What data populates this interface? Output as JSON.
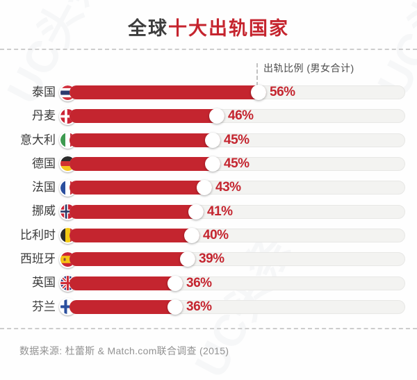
{
  "title": {
    "prefix": "全球",
    "highlight": "十大出轨国家"
  },
  "annotation": {
    "label": "出轨比例 (男女合计)"
  },
  "footer": {
    "source": "数据来源: 杜蕾斯 & Match.com联合调查 (2015)"
  },
  "watermark": {
    "text": "UC头条"
  },
  "colors": {
    "accent_red": "#c4252f",
    "title_dark": "#3d3d3d",
    "track_gray": "#f3f3f1",
    "muted_gray": "#929292"
  },
  "chart_data": {
    "type": "bar",
    "orientation": "horizontal",
    "title": "全球十大出轨国家",
    "value_axis_label": "出轨比例 (男女合计)",
    "unit": "%",
    "categories": [
      "泰国",
      "丹麦",
      "意大利",
      "德国",
      "法国",
      "挪威",
      "比利时",
      "西班牙",
      "英国",
      "芬兰"
    ],
    "values": [
      56,
      46,
      45,
      45,
      43,
      41,
      40,
      39,
      36,
      36
    ],
    "flags": [
      "flag-thailand",
      "flag-denmark",
      "flag-italy",
      "flag-germany",
      "flag-france",
      "flag-norway",
      "flag-belgium",
      "flag-spain",
      "flag-uk",
      "flag-finland"
    ],
    "legend": "none",
    "grid": false,
    "source": "数据来源: 杜蕾斯 & Match.com联合调查 (2015)"
  }
}
